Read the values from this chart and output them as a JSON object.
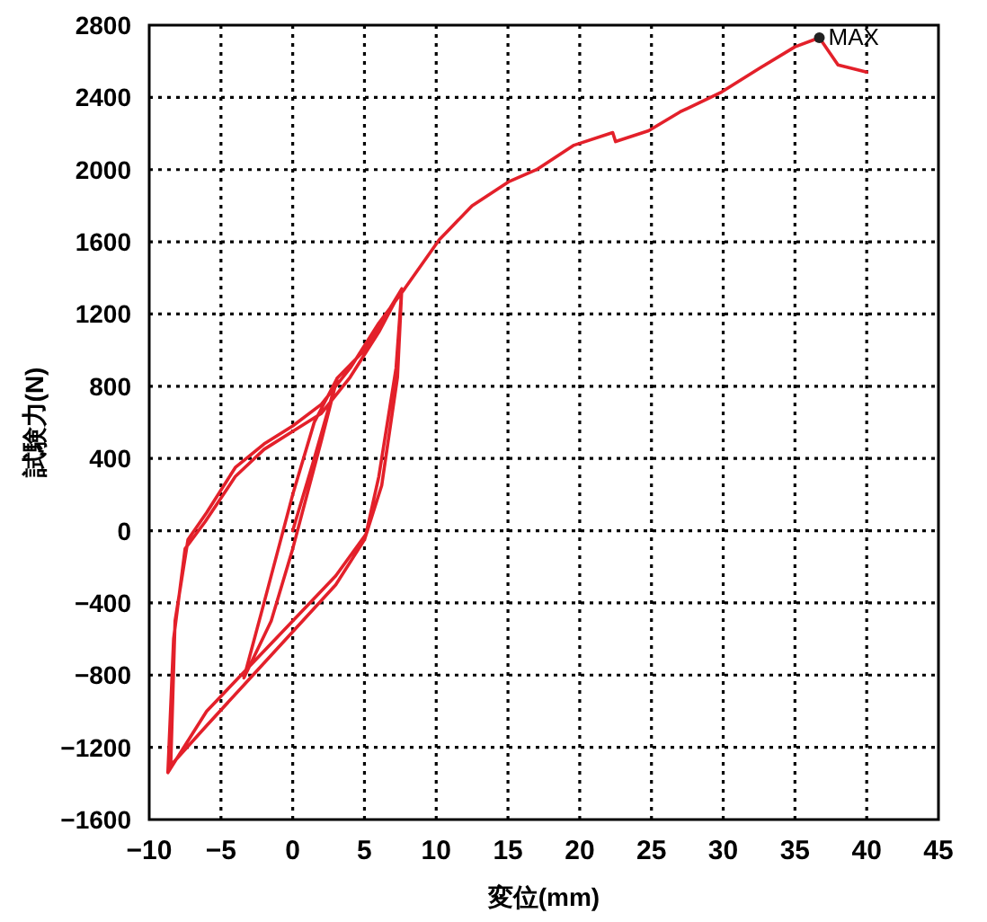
{
  "chart_data": {
    "type": "line",
    "xlabel": "変位(mm)",
    "ylabel": "試験力(N)",
    "xlim": [
      -10,
      45
    ],
    "ylim": [
      -1600,
      2800
    ],
    "xticks": [
      -10,
      -5,
      0,
      5,
      10,
      15,
      20,
      25,
      30,
      35,
      40,
      45
    ],
    "yticks": [
      -1600,
      -1200,
      -800,
      -400,
      0,
      400,
      800,
      1200,
      1600,
      2000,
      2400,
      2800
    ],
    "grid": true,
    "series": [
      {
        "color": "#e3202a",
        "x": [
          0,
          1.5,
          3.1,
          2,
          0,
          -1.5,
          -3.4,
          -2,
          0,
          1.5,
          3.1,
          5,
          7.6,
          7.2,
          6,
          5.1,
          3,
          0,
          -3,
          -6,
          -8.7,
          -8.3,
          -7.5,
          -6.1,
          -4,
          -2,
          0,
          2,
          4,
          6,
          7.6,
          7.3,
          6.2,
          5,
          3,
          0,
          -3,
          -6,
          -8.5,
          -8.2,
          -7.3,
          -6,
          -4,
          -2,
          0,
          2,
          4,
          6,
          7.8,
          10.2,
          12.5,
          15.1,
          17,
          19.6,
          22.3,
          22.5,
          24.8,
          27,
          29.9,
          32.5,
          35,
          36.7,
          38,
          40
        ],
        "values": [
          0,
          400,
          845,
          500,
          -100,
          -500,
          -815,
          -400,
          200,
          600,
          845,
          1000,
          1340,
          900,
          300,
          -20,
          -250,
          -500,
          -750,
          -1000,
          -1340,
          -600,
          -100,
          50,
          300,
          450,
          550,
          650,
          850,
          1100,
          1340,
          850,
          250,
          -50,
          -300,
          -560,
          -820,
          -1080,
          -1300,
          -500,
          -50,
          100,
          350,
          480,
          580,
          700,
          900,
          1150,
          1340,
          1610,
          1800,
          1935,
          2000,
          2135,
          2205,
          2155,
          2215,
          2320,
          2430,
          2560,
          2680,
          2730,
          2580,
          2540
        ]
      }
    ],
    "annotations": [
      {
        "text": "MAX",
        "x": 36.7,
        "y": 2730
      }
    ]
  }
}
